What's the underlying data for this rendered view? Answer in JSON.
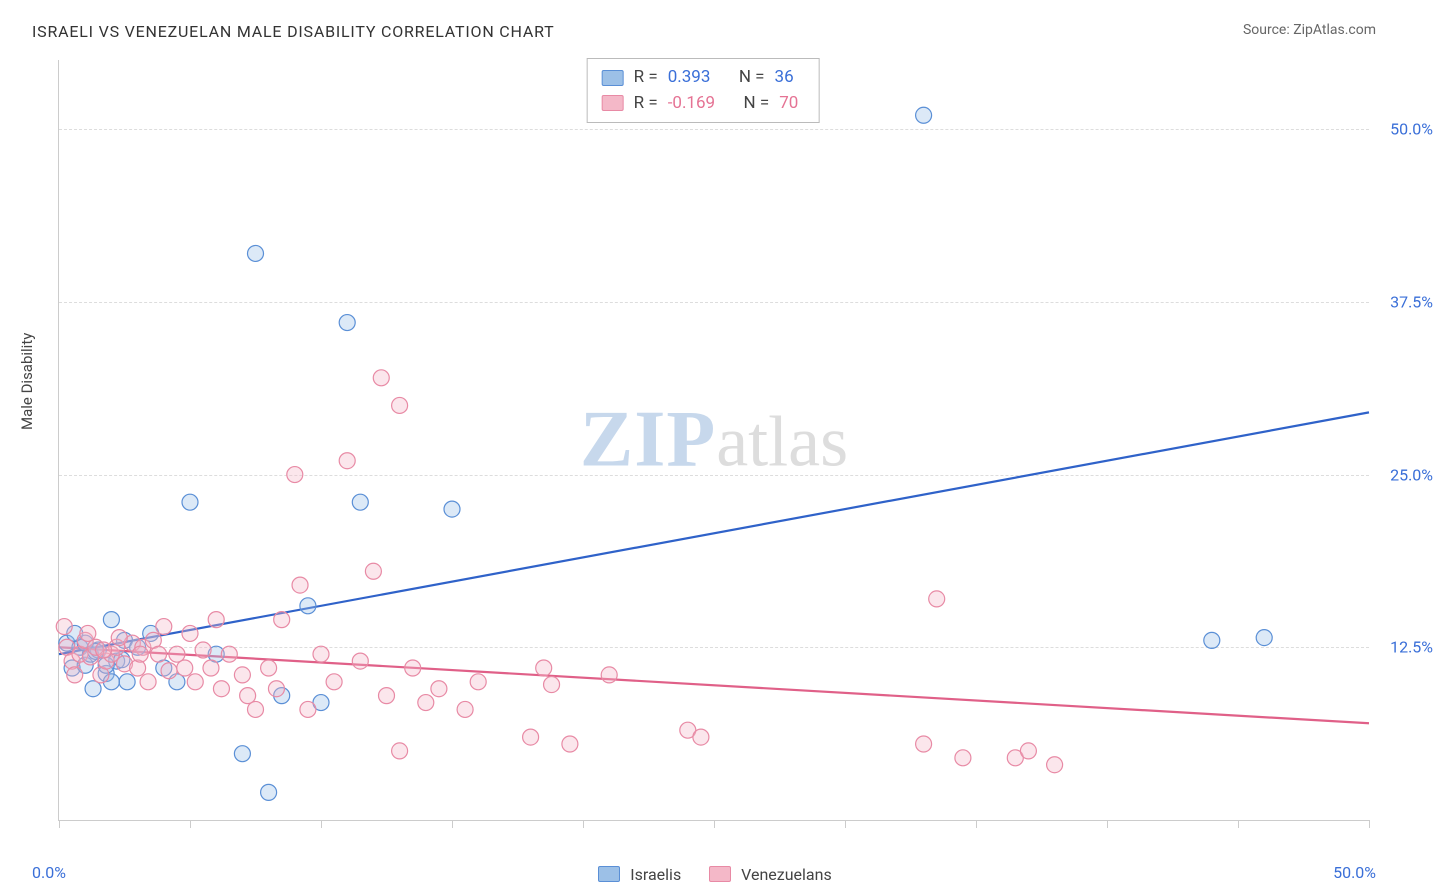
{
  "title": "ISRAELI VS VENEZUELAN MALE DISABILITY CORRELATION CHART",
  "source_prefix": "Source: ",
  "source_name": "ZipAtlas.com",
  "ylabel": "Male Disability",
  "watermark": {
    "left": "ZIP",
    "right": "atlas"
  },
  "chart": {
    "type": "scatter",
    "xlim": [
      0,
      50
    ],
    "ylim": [
      0,
      55
    ],
    "x_min_label": "0.0%",
    "x_max_label": "50.0%",
    "y_ticks": [
      12.5,
      25.0,
      37.5,
      50.0
    ],
    "y_tick_labels": [
      "12.5%",
      "25.0%",
      "37.5%",
      "50.0%"
    ],
    "x_tick_positions": [
      0,
      5,
      10,
      15,
      20,
      25,
      30,
      35,
      40,
      45,
      50
    ],
    "background_color": "#ffffff",
    "grid_color": "#dddddd",
    "axis_color": "#cccccc",
    "tick_label_color": "#3a6fd8",
    "marker_radius": 8,
    "series": [
      {
        "name": "Israelis",
        "fill_color": "#9cc0e7",
        "stroke_color": "#5a8fd6",
        "R_label": "R = ",
        "R_value": "0.393",
        "N_label": "N = ",
        "N_value": "36",
        "trend": {
          "x1": 0,
          "y1": 12.0,
          "x2": 50,
          "y2": 29.5,
          "color": "#2f62c9"
        },
        "points": [
          [
            0.3,
            12.8
          ],
          [
            0.5,
            11.0
          ],
          [
            0.8,
            12.5
          ],
          [
            1.0,
            11.2
          ],
          [
            1.2,
            12.0
          ],
          [
            1.3,
            9.5
          ],
          [
            1.5,
            12.3
          ],
          [
            1.8,
            10.6
          ],
          [
            2.0,
            10.0
          ],
          [
            2.2,
            11.5
          ],
          [
            2.5,
            13.0
          ],
          [
            2.6,
            10.0
          ],
          [
            2.0,
            14.5
          ],
          [
            3.5,
            13.5
          ],
          [
            4.0,
            11.0
          ],
          [
            5.0,
            23.0
          ],
          [
            6.0,
            12.0
          ],
          [
            7.0,
            4.8
          ],
          [
            7.5,
            41.0
          ],
          [
            8.0,
            2.0
          ],
          [
            8.5,
            9.0
          ],
          [
            9.5,
            15.5
          ],
          [
            10.0,
            8.5
          ],
          [
            11.0,
            36.0
          ],
          [
            11.5,
            23.0
          ],
          [
            15.0,
            22.5
          ],
          [
            33.0,
            51.0
          ],
          [
            44.0,
            13.0
          ],
          [
            46.0,
            13.2
          ],
          [
            1.0,
            12.8
          ],
          [
            1.4,
            12.2
          ],
          [
            1.8,
            11.2
          ],
          [
            2.4,
            11.6
          ],
          [
            0.6,
            13.5
          ],
          [
            3.0,
            12.5
          ],
          [
            4.5,
            10.0
          ]
        ]
      },
      {
        "name": "Venezuelans",
        "fill_color": "#f4b8c8",
        "stroke_color": "#e88aa5",
        "R_label": "R = ",
        "R_value": "-0.169",
        "N_label": "N = ",
        "N_value": "70",
        "trend": {
          "x1": 0,
          "y1": 12.5,
          "x2": 50,
          "y2": 7.0,
          "color": "#e06088"
        },
        "points": [
          [
            0.3,
            12.5
          ],
          [
            0.5,
            11.5
          ],
          [
            0.8,
            12.0
          ],
          [
            1.0,
            13.0
          ],
          [
            1.2,
            11.8
          ],
          [
            1.4,
            12.5
          ],
          [
            1.6,
            10.5
          ],
          [
            1.8,
            11.5
          ],
          [
            2.0,
            12.0
          ],
          [
            2.2,
            12.5
          ],
          [
            2.5,
            11.3
          ],
          [
            2.8,
            12.8
          ],
          [
            3.0,
            11.0
          ],
          [
            3.2,
            12.5
          ],
          [
            3.4,
            10.0
          ],
          [
            3.6,
            13.0
          ],
          [
            3.8,
            12.0
          ],
          [
            4.0,
            14.0
          ],
          [
            4.2,
            10.8
          ],
          [
            4.5,
            12.0
          ],
          [
            4.8,
            11.0
          ],
          [
            5.0,
            13.5
          ],
          [
            5.2,
            10.0
          ],
          [
            5.5,
            12.3
          ],
          [
            5.8,
            11.0
          ],
          [
            6.0,
            14.5
          ],
          [
            6.2,
            9.5
          ],
          [
            6.5,
            12.0
          ],
          [
            7.0,
            10.5
          ],
          [
            7.2,
            9.0
          ],
          [
            7.5,
            8.0
          ],
          [
            8.0,
            11.0
          ],
          [
            8.3,
            9.5
          ],
          [
            8.5,
            14.5
          ],
          [
            9.0,
            25.0
          ],
          [
            9.2,
            17.0
          ],
          [
            9.5,
            8.0
          ],
          [
            10.0,
            12.0
          ],
          [
            10.5,
            10.0
          ],
          [
            11.0,
            26.0
          ],
          [
            11.5,
            11.5
          ],
          [
            12.0,
            18.0
          ],
          [
            12.3,
            32.0
          ],
          [
            12.5,
            9.0
          ],
          [
            13.0,
            30.0
          ],
          [
            13.0,
            5.0
          ],
          [
            13.5,
            11.0
          ],
          [
            14.0,
            8.5
          ],
          [
            14.5,
            9.5
          ],
          [
            15.5,
            8.0
          ],
          [
            16.0,
            10.0
          ],
          [
            18.0,
            6.0
          ],
          [
            18.5,
            11.0
          ],
          [
            18.8,
            9.8
          ],
          [
            19.5,
            5.5
          ],
          [
            21.0,
            10.5
          ],
          [
            24.0,
            6.5
          ],
          [
            24.5,
            6.0
          ],
          [
            33.0,
            5.5
          ],
          [
            33.5,
            16.0
          ],
          [
            34.5,
            4.5
          ],
          [
            36.5,
            4.5
          ],
          [
            37.0,
            5.0
          ],
          [
            38.0,
            4.0
          ],
          [
            0.2,
            14.0
          ],
          [
            0.6,
            10.5
          ],
          [
            1.1,
            13.5
          ],
          [
            1.7,
            12.3
          ],
          [
            2.3,
            13.2
          ],
          [
            3.1,
            12.0
          ]
        ]
      }
    ],
    "legend_bottom": [
      {
        "label": "Israelis",
        "fill": "#9cc0e7",
        "stroke": "#5a8fd6"
      },
      {
        "label": "Venezuelans",
        "fill": "#f4b8c8",
        "stroke": "#e88aa5"
      }
    ]
  }
}
